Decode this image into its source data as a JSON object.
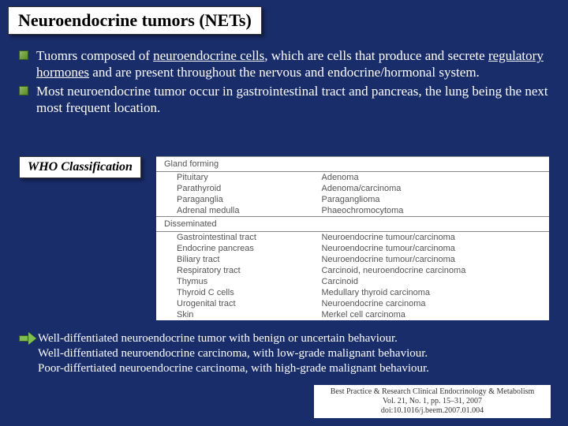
{
  "title": "Neuroendocrine tumors (NETs)",
  "bullet1_pre": "Tuomrs composed of ",
  "bullet1_u1": "neuroendocrine cells",
  "bullet1_mid": ", which are cells that produce and secrete ",
  "bullet1_u2": "regulatory hormones",
  "bullet1_post": " and are present throughout the nervous and endocrine/hormonal system.",
  "bullet2": "Most neuroendocrine tumor occur in gastrointestinal tract and pancreas, the lung being the next most frequent location.",
  "who_label": "WHO Classification",
  "table": {
    "hdr_left": "Gland forming",
    "hdr_right": "",
    "rows1": [
      [
        "Pituitary",
        "Adenoma"
      ],
      [
        "Parathyroid",
        "Adenoma/carcinoma"
      ],
      [
        "Paraganglia",
        "Paraganglioma"
      ],
      [
        "Adrenal medulla",
        "Phaeochromocytoma"
      ]
    ],
    "hdr2": "Disseminated",
    "rows2": [
      [
        "Gastrointestinal tract",
        "Neuroendocrine tumour/carcinoma"
      ],
      [
        "Endocrine pancreas",
        "Neuroendocrine tumour/carcinoma"
      ],
      [
        "Biliary tract",
        "Neuroendocrine tumour/carcinoma"
      ],
      [
        "Respiratory tract",
        "Carcinoid, neuroendocrine carcinoma"
      ],
      [
        "Thymus",
        "Carcinoid"
      ],
      [
        "Thyroid C cells",
        "Medullary thyroid carcinoma"
      ],
      [
        "Urogenital tract",
        "Neuroendocrine carcinoma"
      ],
      [
        "Skin",
        "Merkel cell carcinoma"
      ]
    ]
  },
  "arrow_lines": [
    "Well-diffentiated neuroendocrine tumor with benign or uncertain behaviour.",
    "Well-diffentiated neuroendocrine carcinoma, with low-grade malignant behaviour.",
    "Poor-differtiated neuroendocrine carcinoma, with high-grade malignant behaviour."
  ],
  "citation": {
    "line1": "Best Practice & Research Clinical Endocrinology & Metabolism",
    "line2": "Vol. 21, No. 1, pp. 15–31, 2007",
    "line3": "doi:10.1016/j.beem.2007.01.004"
  }
}
